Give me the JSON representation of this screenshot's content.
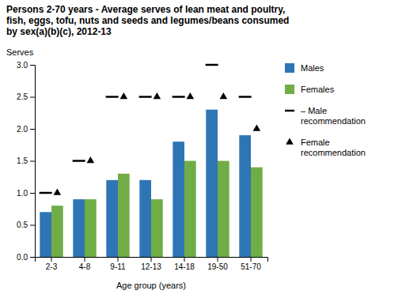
{
  "chart_data": {
    "type": "bar",
    "title": "Persons 2-70 years - Average serves of lean meat and poultry,\nfish, eggs, tofu, nuts and seeds and legumes/beans consumed\nby sex(a)(b)(c),  2012-13",
    "xlabel": "Age group (years)",
    "ylabel": "Serves",
    "categories": [
      "2-3",
      "4-8",
      "9-11",
      "12-13",
      "14-18",
      "19-50",
      "51-70"
    ],
    "series": [
      {
        "name": "Males",
        "type": "bar",
        "color": "#2E75B6",
        "values": [
          0.7,
          0.9,
          1.2,
          1.2,
          1.8,
          2.3,
          1.9
        ]
      },
      {
        "name": "Females",
        "type": "bar",
        "color": "#70AD47",
        "values": [
          0.8,
          0.9,
          1.3,
          0.9,
          1.5,
          1.5,
          1.4
        ]
      },
      {
        "name": "– Male\nrecommendation",
        "type": "scatter",
        "marker": "dash",
        "color": "black",
        "values": [
          1.0,
          1.5,
          2.5,
          2.5,
          2.5,
          3.0,
          2.5
        ]
      },
      {
        "name": "Female\nrecommendation",
        "type": "scatter",
        "marker": "triangle",
        "color": "black",
        "values": [
          1.0,
          1.5,
          2.5,
          2.5,
          2.5,
          2.5,
          2.0
        ]
      }
    ],
    "ylim": [
      0.0,
      3.0
    ],
    "yticks": [
      {
        "value": 0.0,
        "label": "0.0"
      },
      0.5,
      {
        "value": 1.0,
        "label": "1.0"
      },
      1.5,
      {
        "value": 2.0,
        "label": "2.0"
      },
      2.5,
      {
        "value": 3.0,
        "label": "3.0"
      }
    ],
    "grid": false
  }
}
